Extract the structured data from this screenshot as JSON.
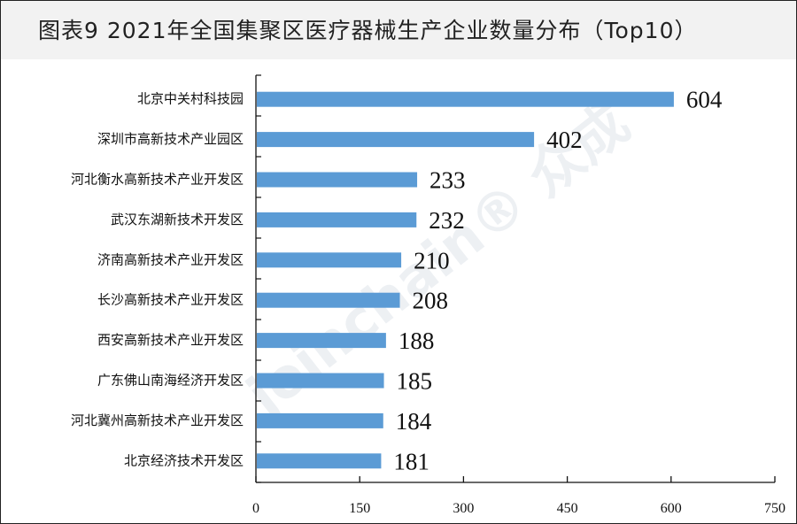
{
  "title": "图表9  2021年全国集聚区医疗器械生产企业数量分布（Top10）",
  "watermark": "joinchain® 众成",
  "chart_data": {
    "type": "bar",
    "orientation": "horizontal",
    "title": "图表9  2021年全国集聚区医疗器械生产企业数量分布（Top10）",
    "categories": [
      "北京中关村科技园",
      "深圳市高新技术产业园区",
      "河北衡水高新技术产业开发区",
      "武汉东湖新技术开发区",
      "济南高新技术产业开发区",
      "长沙高新技术产业开发区",
      "西安高新技术产业开发区",
      "广东佛山南海经济开发区",
      "河北冀州高新技术产业开发区",
      "北京经济技术开发区"
    ],
    "values": [
      604,
      402,
      233,
      232,
      210,
      208,
      188,
      185,
      184,
      181
    ],
    "xlim": [
      0,
      750
    ],
    "xticks": [
      0,
      150,
      300,
      450,
      600,
      750
    ],
    "grid": false,
    "data_labels": true,
    "bar_color": "#5b9bd5"
  }
}
